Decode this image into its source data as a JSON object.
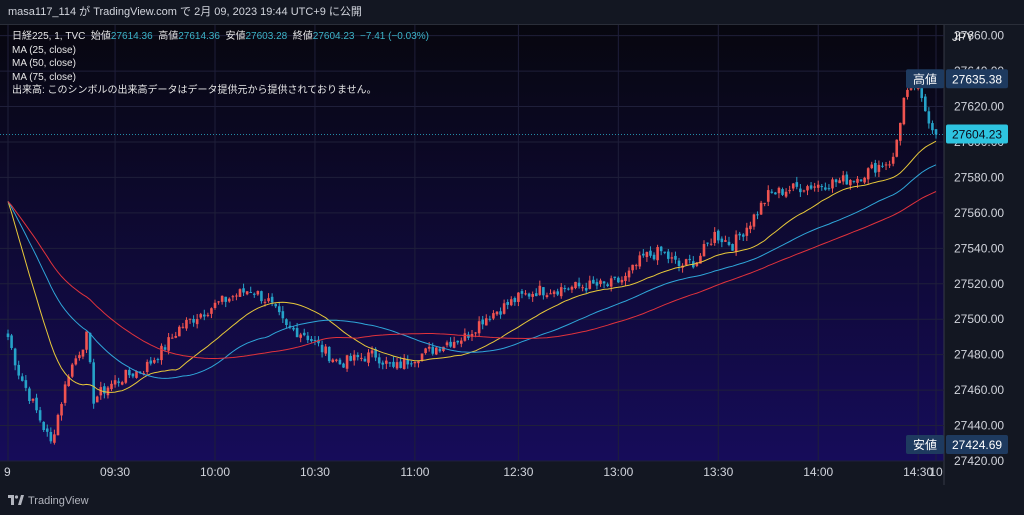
{
  "header": {
    "publisher_line": "masa117_114 が TradingView.com で 2月 09, 2023 19:44 UTC+9 に公開"
  },
  "legend": {
    "symbol": "日経225, 1, TVC",
    "open_label": "始値",
    "open_value": "27614.36",
    "high_label": "高値",
    "high_value": "27614.36",
    "low_label": "安値",
    "low_value": "27603.28",
    "close_label": "終値",
    "close_value": "27604.23",
    "change": "−7.41 (−0.03%)",
    "ma_lines": [
      "MA (25, close)",
      "MA (50, close)",
      "MA (75, close)"
    ],
    "volume_note": "出来高: このシンボルの出来高データはデータ提供元から提供されておりません。"
  },
  "price_scale": {
    "currency": "JPY",
    "ticks": [
      "27660.00",
      "27640.00",
      "27620.00",
      "27600.00",
      "27580.00",
      "27560.00",
      "27540.00",
      "27520.00",
      "27500.00",
      "27480.00",
      "27460.00",
      "27440.00",
      "27420.00"
    ],
    "high_tag_label": "高値",
    "high_tag_value": "27635.38",
    "last_price": "27604.23",
    "low_tag_label": "安値",
    "low_tag_value": "27424.69"
  },
  "time_scale": {
    "ticks": [
      "9",
      "09:30",
      "10:00",
      "10:30",
      "11:00",
      "12:30",
      "13:00",
      "13:30",
      "14:00",
      "14:30",
      "10"
    ]
  },
  "footer": {
    "brand": "TradingView"
  },
  "colors": {
    "up": "#ef5350",
    "down": "#26a2c8",
    "ma25": "#e8c93a",
    "ma50": "#2fa6d9",
    "ma75": "#e0323c",
    "last_price_tag": "#2ec4e0",
    "tag_bg": "#1e3a5f"
  },
  "chart_data": {
    "type": "candlestick",
    "symbol": "日経225",
    "interval": "1",
    "y_range": [
      27420,
      27666
    ],
    "x_labels": [
      "9",
      "09:30",
      "10:00",
      "10:30",
      "11:00",
      "12:30",
      "13:00",
      "13:30",
      "14:00",
      "14:30",
      "10"
    ],
    "anchors": [
      [
        0,
        27490
      ],
      [
        3,
        27470
      ],
      [
        8,
        27448
      ],
      [
        12,
        27430
      ],
      [
        17,
        27470
      ],
      [
        22,
        27490
      ],
      [
        24,
        27455
      ],
      [
        28,
        27462
      ],
      [
        33,
        27468
      ],
      [
        38,
        27472
      ],
      [
        43,
        27482
      ],
      [
        48,
        27495
      ],
      [
        53,
        27502
      ],
      [
        58,
        27508
      ],
      [
        63,
        27513
      ],
      [
        68,
        27517
      ],
      [
        73,
        27510
      ],
      [
        78,
        27495
      ],
      [
        83,
        27492
      ],
      [
        88,
        27483
      ],
      [
        93,
        27475
      ],
      [
        98,
        27478
      ],
      [
        103,
        27480
      ],
      [
        108,
        27472
      ],
      [
        113,
        27478
      ],
      [
        118,
        27482
      ],
      [
        123,
        27487
      ],
      [
        128,
        27490
      ],
      [
        133,
        27500
      ],
      [
        138,
        27506
      ],
      [
        143,
        27512
      ],
      [
        148,
        27516
      ],
      [
        153,
        27517
      ],
      [
        158,
        27518
      ],
      [
        163,
        27519
      ],
      [
        168,
        27519
      ],
      [
        173,
        27523
      ],
      [
        178,
        27535
      ],
      [
        183,
        27538
      ],
      [
        188,
        27530
      ],
      [
        193,
        27533
      ],
      [
        198,
        27548
      ],
      [
        203,
        27542
      ],
      [
        208,
        27555
      ],
      [
        213,
        27570
      ],
      [
        218,
        27573
      ],
      [
        223,
        27575
      ],
      [
        228,
        27576
      ],
      [
        233,
        27578
      ],
      [
        238,
        27580
      ],
      [
        243,
        27586
      ],
      [
        248,
        27590
      ],
      [
        251,
        27624
      ],
      [
        254,
        27632
      ],
      [
        257,
        27618
      ],
      [
        260,
        27604
      ]
    ],
    "candle_count": 261,
    "ma_periods": [
      25,
      50,
      75
    ],
    "high": 27635.38,
    "low": 27424.69,
    "last": 27604.23
  }
}
